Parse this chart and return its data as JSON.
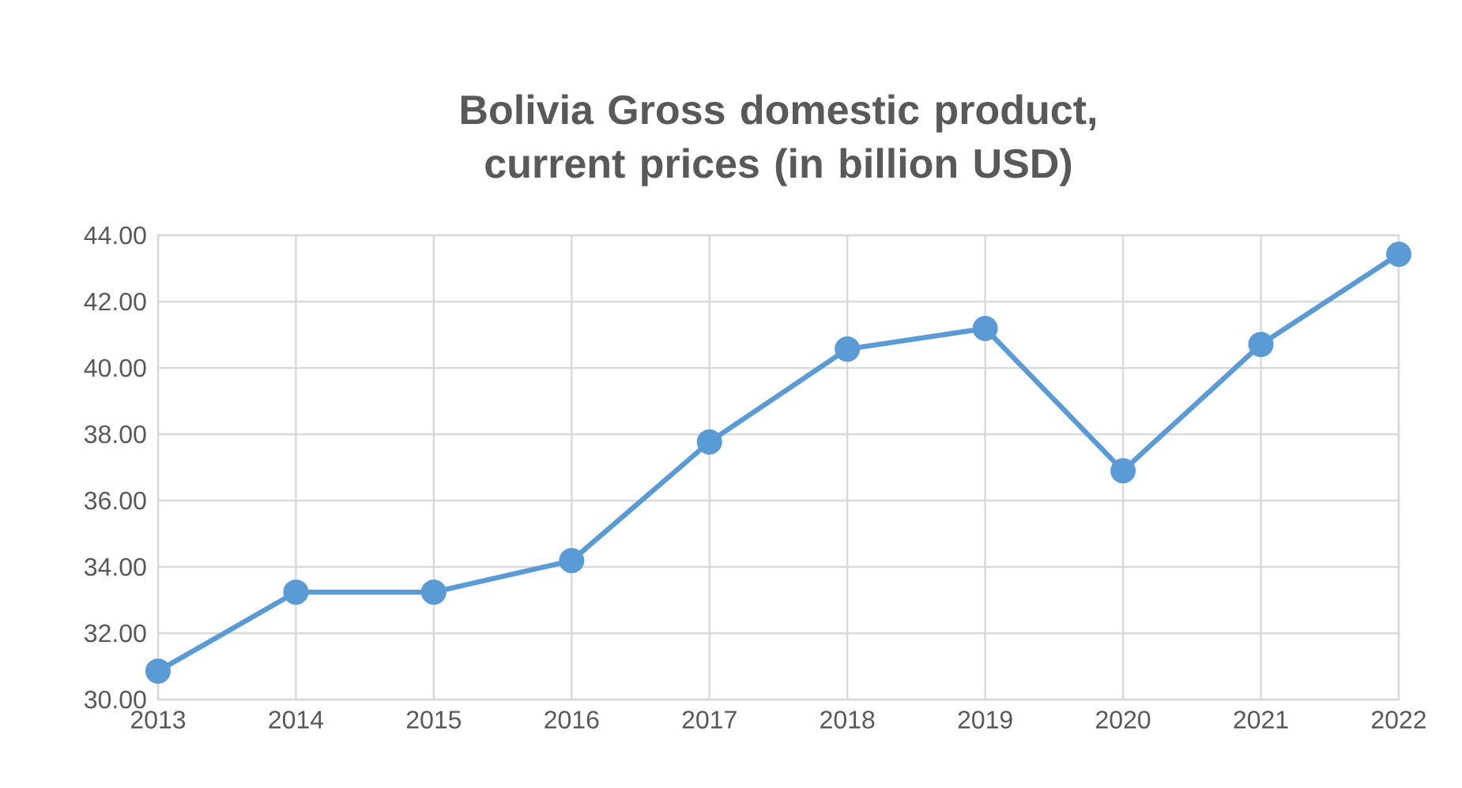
{
  "chart_data": {
    "type": "line",
    "title": "Bolivia Gross domestic product, current prices (in billion USD)",
    "categories": [
      "2013",
      "2014",
      "2015",
      "2016",
      "2017",
      "2018",
      "2019",
      "2020",
      "2021",
      "2022"
    ],
    "series": [
      {
        "color": "#5b9bd5",
        "values": [
          30.86,
          33.24,
          33.24,
          34.19,
          37.77,
          40.57,
          41.19,
          36.9,
          40.71,
          43.43
        ]
      }
    ],
    "ylim": [
      30,
      44
    ],
    "yticks": [
      {
        "value": 30,
        "label": "30.00"
      },
      {
        "value": 32,
        "label": "32.00"
      },
      {
        "value": 34,
        "label": "34.00"
      },
      {
        "value": 36,
        "label": "36.00"
      },
      {
        "value": 38,
        "label": "38.00"
      },
      {
        "value": 40,
        "label": "40.00"
      },
      {
        "value": 42,
        "label": "42.00"
      },
      {
        "value": 44,
        "label": "44.00"
      }
    ],
    "grid": true,
    "marker": "circle",
    "line_style": "solid"
  }
}
